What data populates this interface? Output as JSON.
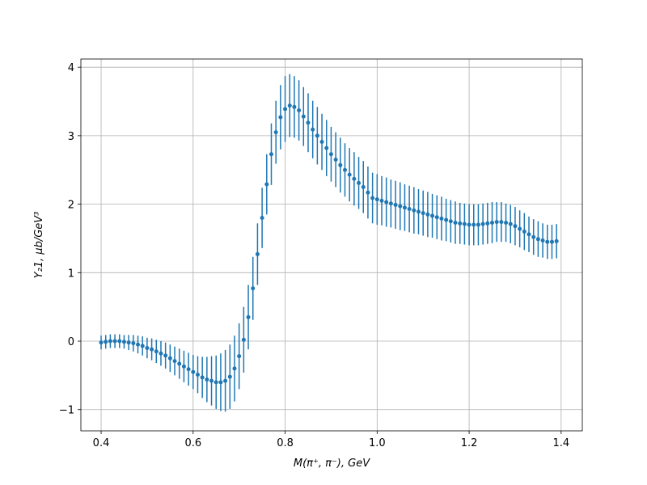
{
  "chart_data": {
    "type": "errorbar",
    "xlabel": "M(π⁺, π⁻), GeV",
    "ylabel": "Y₂1, μb/GeV³",
    "color": "#1f77b4",
    "grid": true,
    "xlim": [
      0.356,
      1.446
    ],
    "ylim": [
      -1.31,
      4.12
    ],
    "xticks": [
      0.4,
      0.6,
      0.8,
      {
        "value": 1,
        "label": "1.0"
      },
      1.2,
      1.4
    ],
    "yticks": [
      {
        "value": -1,
        "label": "−1"
      },
      0,
      1,
      2,
      3,
      4
    ],
    "x": [
      0.4,
      0.41,
      0.42,
      0.43,
      0.44,
      0.45,
      0.46,
      0.47,
      0.48,
      0.49,
      0.5,
      0.51,
      0.52,
      0.53,
      0.54,
      0.55,
      0.56,
      0.57,
      0.58,
      0.59,
      0.6,
      0.61,
      0.62,
      0.63,
      0.64,
      0.65,
      0.66,
      0.67,
      0.68,
      0.69,
      0.7,
      0.71,
      0.72,
      0.73,
      0.74,
      0.75,
      0.76,
      0.77,
      0.78,
      0.79,
      0.8,
      0.81,
      0.82,
      0.83,
      0.84,
      0.85,
      0.86,
      0.87,
      0.88,
      0.89,
      0.9,
      0.91,
      0.92,
      0.93,
      0.94,
      0.95,
      0.96,
      0.97,
      0.98,
      0.99,
      1.0,
      1.01,
      1.02,
      1.03,
      1.04,
      1.05,
      1.06,
      1.07,
      1.08,
      1.09,
      1.1,
      1.11,
      1.12,
      1.13,
      1.14,
      1.15,
      1.16,
      1.17,
      1.18,
      1.19,
      1.2,
      1.21,
      1.22,
      1.23,
      1.24,
      1.25,
      1.26,
      1.27,
      1.28,
      1.29,
      1.3,
      1.31,
      1.32,
      1.33,
      1.34,
      1.35,
      1.36,
      1.37,
      1.38,
      1.39
    ],
    "y": [
      -0.02,
      -0.01,
      0.0,
      0.0,
      0.0,
      -0.01,
      -0.02,
      -0.03,
      -0.05,
      -0.07,
      -0.1,
      -0.12,
      -0.15,
      -0.18,
      -0.21,
      -0.25,
      -0.29,
      -0.33,
      -0.37,
      -0.41,
      -0.45,
      -0.49,
      -0.53,
      -0.56,
      -0.58,
      -0.6,
      -0.6,
      -0.58,
      -0.52,
      -0.4,
      -0.22,
      0.02,
      0.35,
      0.77,
      1.27,
      1.8,
      2.29,
      2.73,
      3.05,
      3.27,
      3.39,
      3.44,
      3.42,
      3.37,
      3.28,
      3.19,
      3.09,
      3.0,
      2.91,
      2.82,
      2.73,
      2.65,
      2.57,
      2.5,
      2.43,
      2.37,
      2.31,
      2.25,
      2.17,
      2.09,
      2.07,
      2.05,
      2.03,
      2.01,
      1.99,
      1.97,
      1.95,
      1.93,
      1.91,
      1.89,
      1.87,
      1.85,
      1.83,
      1.81,
      1.79,
      1.77,
      1.75,
      1.73,
      1.72,
      1.71,
      1.7,
      1.7,
      1.7,
      1.71,
      1.72,
      1.73,
      1.74,
      1.74,
      1.73,
      1.71,
      1.68,
      1.64,
      1.6,
      1.56,
      1.52,
      1.49,
      1.47,
      1.45,
      1.45,
      1.46
    ],
    "yerr": [
      0.1,
      0.1,
      0.1,
      0.1,
      0.1,
      0.1,
      0.11,
      0.12,
      0.13,
      0.14,
      0.15,
      0.16,
      0.17,
      0.18,
      0.19,
      0.2,
      0.21,
      0.22,
      0.23,
      0.24,
      0.25,
      0.27,
      0.3,
      0.33,
      0.36,
      0.39,
      0.42,
      0.45,
      0.47,
      0.48,
      0.48,
      0.48,
      0.47,
      0.46,
      0.45,
      0.44,
      0.44,
      0.45,
      0.46,
      0.47,
      0.48,
      0.46,
      0.45,
      0.44,
      0.43,
      0.43,
      0.42,
      0.42,
      0.41,
      0.41,
      0.4,
      0.4,
      0.4,
      0.39,
      0.39,
      0.39,
      0.38,
      0.38,
      0.38,
      0.37,
      0.37,
      0.36,
      0.36,
      0.35,
      0.35,
      0.35,
      0.34,
      0.34,
      0.34,
      0.33,
      0.33,
      0.33,
      0.32,
      0.32,
      0.32,
      0.31,
      0.31,
      0.31,
      0.3,
      0.3,
      0.3,
      0.3,
      0.3,
      0.3,
      0.3,
      0.3,
      0.29,
      0.29,
      0.28,
      0.28,
      0.28,
      0.27,
      0.27,
      0.26,
      0.26,
      0.26,
      0.25,
      0.25,
      0.25,
      0.25
    ]
  }
}
